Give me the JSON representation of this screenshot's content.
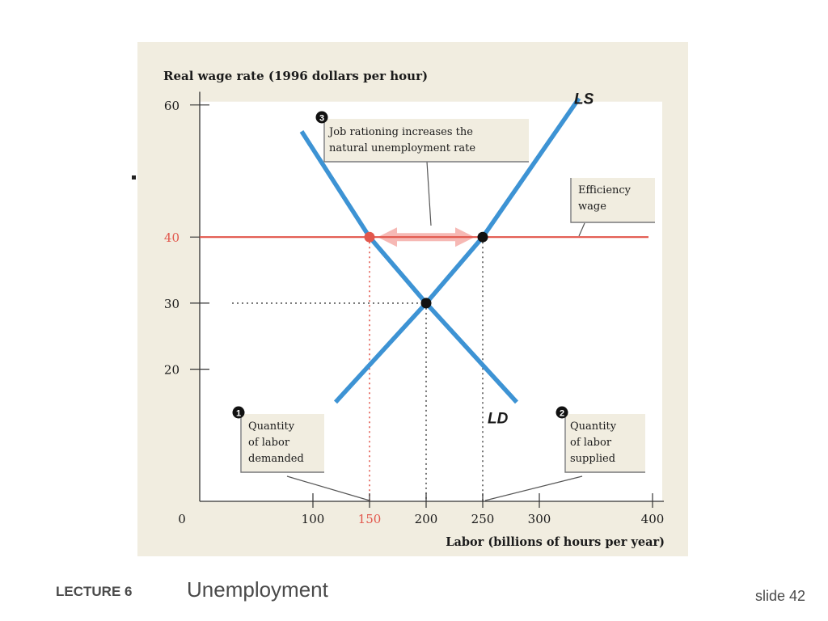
{
  "footer": {
    "lecture": "LECTURE 6",
    "title": "Unemployment",
    "slide": "slide 42"
  },
  "chart_data": {
    "type": "line",
    "ylabel": "Real wage rate (1996 dollars per hour)",
    "xlabel": "Labor (billions of hours per year)",
    "xlim": [
      0,
      400
    ],
    "ylim": [
      0,
      60
    ],
    "x_ticks": [
      0,
      100,
      150,
      200,
      250,
      300,
      400
    ],
    "x_tick_labels": [
      "0",
      "100",
      "150",
      "200",
      "250",
      "300",
      "400"
    ],
    "y_ticks": [
      20,
      30,
      40,
      60
    ],
    "y_tick_labels": [
      "20",
      "30",
      "40",
      "60"
    ],
    "highlight_color": "#e2574c",
    "curve_color": "#3d93d4",
    "series": [
      {
        "name": "LS",
        "x": [
          120,
          200,
          250,
          335
        ],
        "y": [
          15,
          30,
          40,
          61
        ]
      },
      {
        "name": "LD",
        "x": [
          90,
          150,
          200,
          280
        ],
        "y": [
          56,
          40,
          30,
          15
        ]
      }
    ],
    "efficiency_wage": {
      "y": 40,
      "x_range": [
        0,
        400
      ]
    },
    "points": [
      {
        "x": 150,
        "y": 40,
        "color": "#e2574c"
      },
      {
        "x": 250,
        "y": 40,
        "color": "#111111"
      },
      {
        "x": 200,
        "y": 30,
        "color": "#111111"
      }
    ],
    "annotations": {
      "job_rationing": {
        "marker": "3",
        "lines": [
          "Job rationing increases the",
          "natural unemployment rate"
        ]
      },
      "efficiency": {
        "lines": [
          "Efficiency",
          "wage"
        ]
      },
      "demanded": {
        "marker": "1",
        "lines": [
          "Quantity",
          "of labor",
          "demanded"
        ]
      },
      "supplied": {
        "marker": "2",
        "lines": [
          "Quantity",
          "of labor",
          "supplied"
        ]
      }
    }
  }
}
